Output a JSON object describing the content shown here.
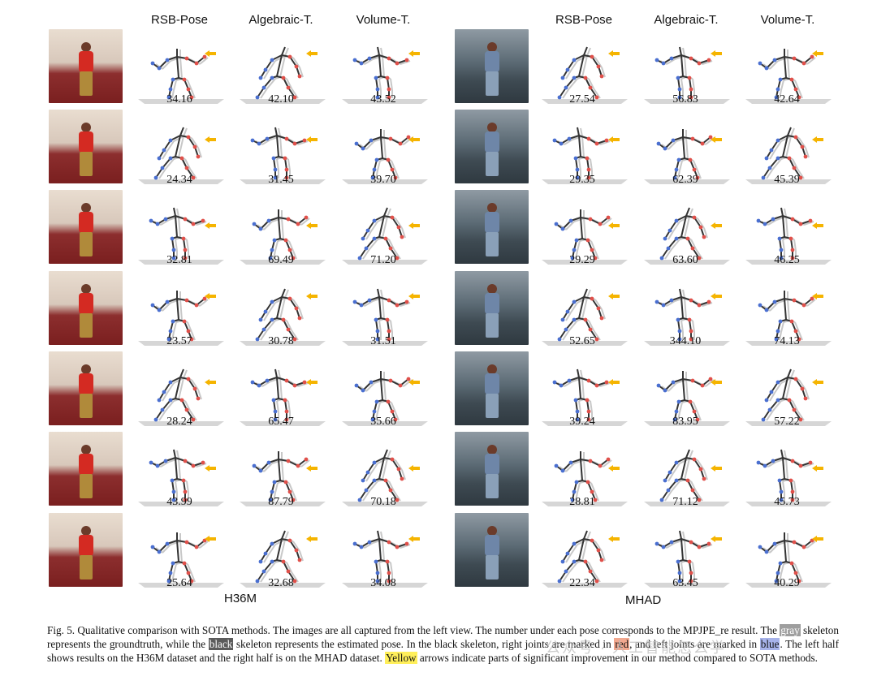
{
  "left_panel": {
    "dataset_label": "H36M",
    "headers": [
      "RSB-Pose",
      "Algebraic-T.",
      "Volume-T."
    ],
    "rows": [
      [
        "34.16",
        "42.10",
        "43.52"
      ],
      [
        "24.34",
        "31.45",
        "39.70"
      ],
      [
        "32.81",
        "69.49",
        "71.20"
      ],
      [
        "23.57",
        "30.78",
        "31.51"
      ],
      [
        "28.24",
        "65.47",
        "35.66"
      ],
      [
        "43.99",
        "87.79",
        "70.18"
      ],
      [
        "25.64",
        "32.68",
        "34.08"
      ]
    ]
  },
  "right_panel": {
    "dataset_label": "MHAD",
    "headers": [
      "RSB-Pose",
      "Algebraic-T.",
      "Volume-T."
    ],
    "rows": [
      [
        "27.54",
        "56.83",
        "42.64"
      ],
      [
        "29.35",
        "62.39",
        "45.39"
      ],
      [
        "29.29",
        "63.60",
        "46.25"
      ],
      [
        "52.65",
        "344.10",
        "74.13"
      ],
      [
        "39.24",
        "83.95",
        "57.22"
      ],
      [
        "28.81",
        "71.12",
        "45.73"
      ],
      [
        "22.34",
        "63.45",
        "40.29"
      ]
    ]
  },
  "caption": {
    "p1": "Fig. 5.  Qualitative comparison with SOTA methods. The images are all captured from the left view. The number under each pose corresponds to the MPJPE_re result. The ",
    "gray": "gray",
    "p2": " skeleton represents the groundtruth, while the ",
    "black": "black",
    "p3": " skeleton represents the estimated pose. In the black skeleton, right joints are marked in ",
    "red": "red",
    "p4": ", and left joints are marked in ",
    "blue": "blue",
    "p5": ". The left half shows results on the H36M dataset and the right half is on the MHAD dataset. ",
    "yellow": "Yellow",
    "p6": " arrows indicate parts of significant improvement in our method compared to SOTA methods."
  },
  "watermark": "公众号 · 人工智能怎么学",
  "colors": {
    "gt_skeleton": "#c8c8c8",
    "est_skeleton": "#333333",
    "right_joint": "#e0504a",
    "left_joint": "#4a6fd0",
    "arrow": "#f5b400",
    "ground": "#d6d6d6"
  }
}
